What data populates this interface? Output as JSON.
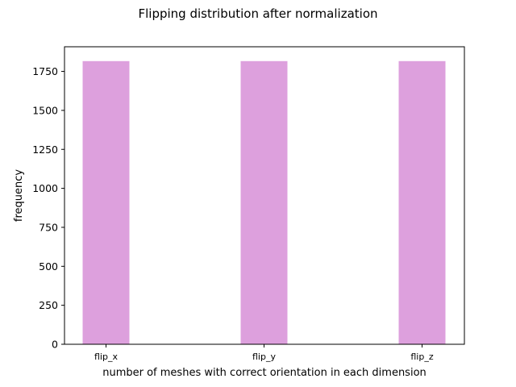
{
  "chart_data": {
    "type": "bar",
    "title": "Flipping distribution after normalization",
    "xlabel": "number of meshes with correct orientation in each dimension",
    "ylabel": "frequency",
    "categories": [
      "flip_x",
      "flip_y",
      "flip_z"
    ],
    "values": [
      1816,
      1816,
      1816
    ],
    "ylim": [
      0,
      1908
    ],
    "yticks": [
      0,
      250,
      500,
      750,
      1000,
      1250,
      1500,
      1750
    ],
    "bar_color": "#dda0dd",
    "grid": false,
    "legend": "none"
  }
}
